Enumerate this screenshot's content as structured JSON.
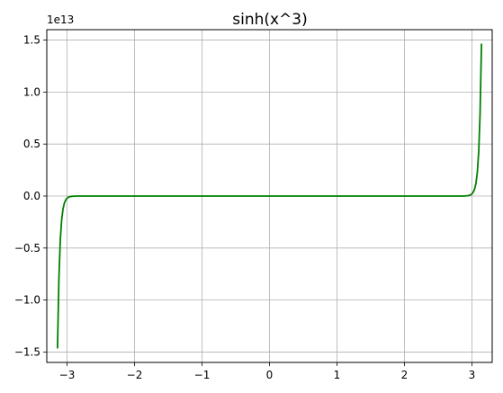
{
  "chart_data": {
    "type": "line",
    "title": "sinh(x^3)",
    "xlabel": "",
    "ylabel": "",
    "y_offset_label": "1e13",
    "xlim": [
      -3.3,
      3.3
    ],
    "ylim": [
      -1.6,
      1.6
    ],
    "x_ticks": [
      -3,
      -2,
      -1,
      0,
      1,
      2,
      3
    ],
    "x_tick_labels": [
      "−3",
      "−2",
      "−1",
      "0",
      "1",
      "2",
      "3"
    ],
    "y_ticks": [
      -1.5,
      -1.0,
      -0.5,
      0.0,
      0.5,
      1.0,
      1.5
    ],
    "y_tick_labels": [
      "−1.5",
      "−1.0",
      "−0.5",
      "0.0",
      "0.5",
      "1.0",
      "1.5"
    ],
    "grid": true,
    "series": [
      {
        "color": "#008000",
        "x": [
          -3.1416,
          -3.12,
          -3.1,
          -3.08,
          -3.06,
          -3.04,
          -3.02,
          -3.0,
          -2.98,
          -2.96,
          -2.94,
          -2.92,
          -2.9,
          -2.85,
          -2.8,
          -2.5,
          -2.0,
          -1.0,
          0.0,
          1.0,
          2.0,
          2.5,
          2.8,
          2.85,
          2.9,
          2.92,
          2.94,
          2.96,
          2.98,
          3.0,
          3.02,
          3.04,
          3.06,
          3.08,
          3.1,
          3.12,
          3.1416
        ],
        "y": [
          -1.4653,
          -0.7852,
          -0.4244,
          -0.2305,
          -0.1258,
          -0.069,
          -0.038,
          -0.021,
          -0.0117,
          -0.0065,
          -0.0036,
          -0.002,
          -0.0011,
          -0.0003,
          -5e-05,
          0.0,
          0.0,
          0.0,
          0.0,
          0.0,
          0.0,
          0.0,
          5e-05,
          0.0003,
          0.0011,
          0.002,
          0.0036,
          0.0065,
          0.0117,
          0.021,
          0.038,
          0.069,
          0.1258,
          0.2305,
          0.4244,
          0.7852,
          1.4653
        ]
      }
    ]
  }
}
